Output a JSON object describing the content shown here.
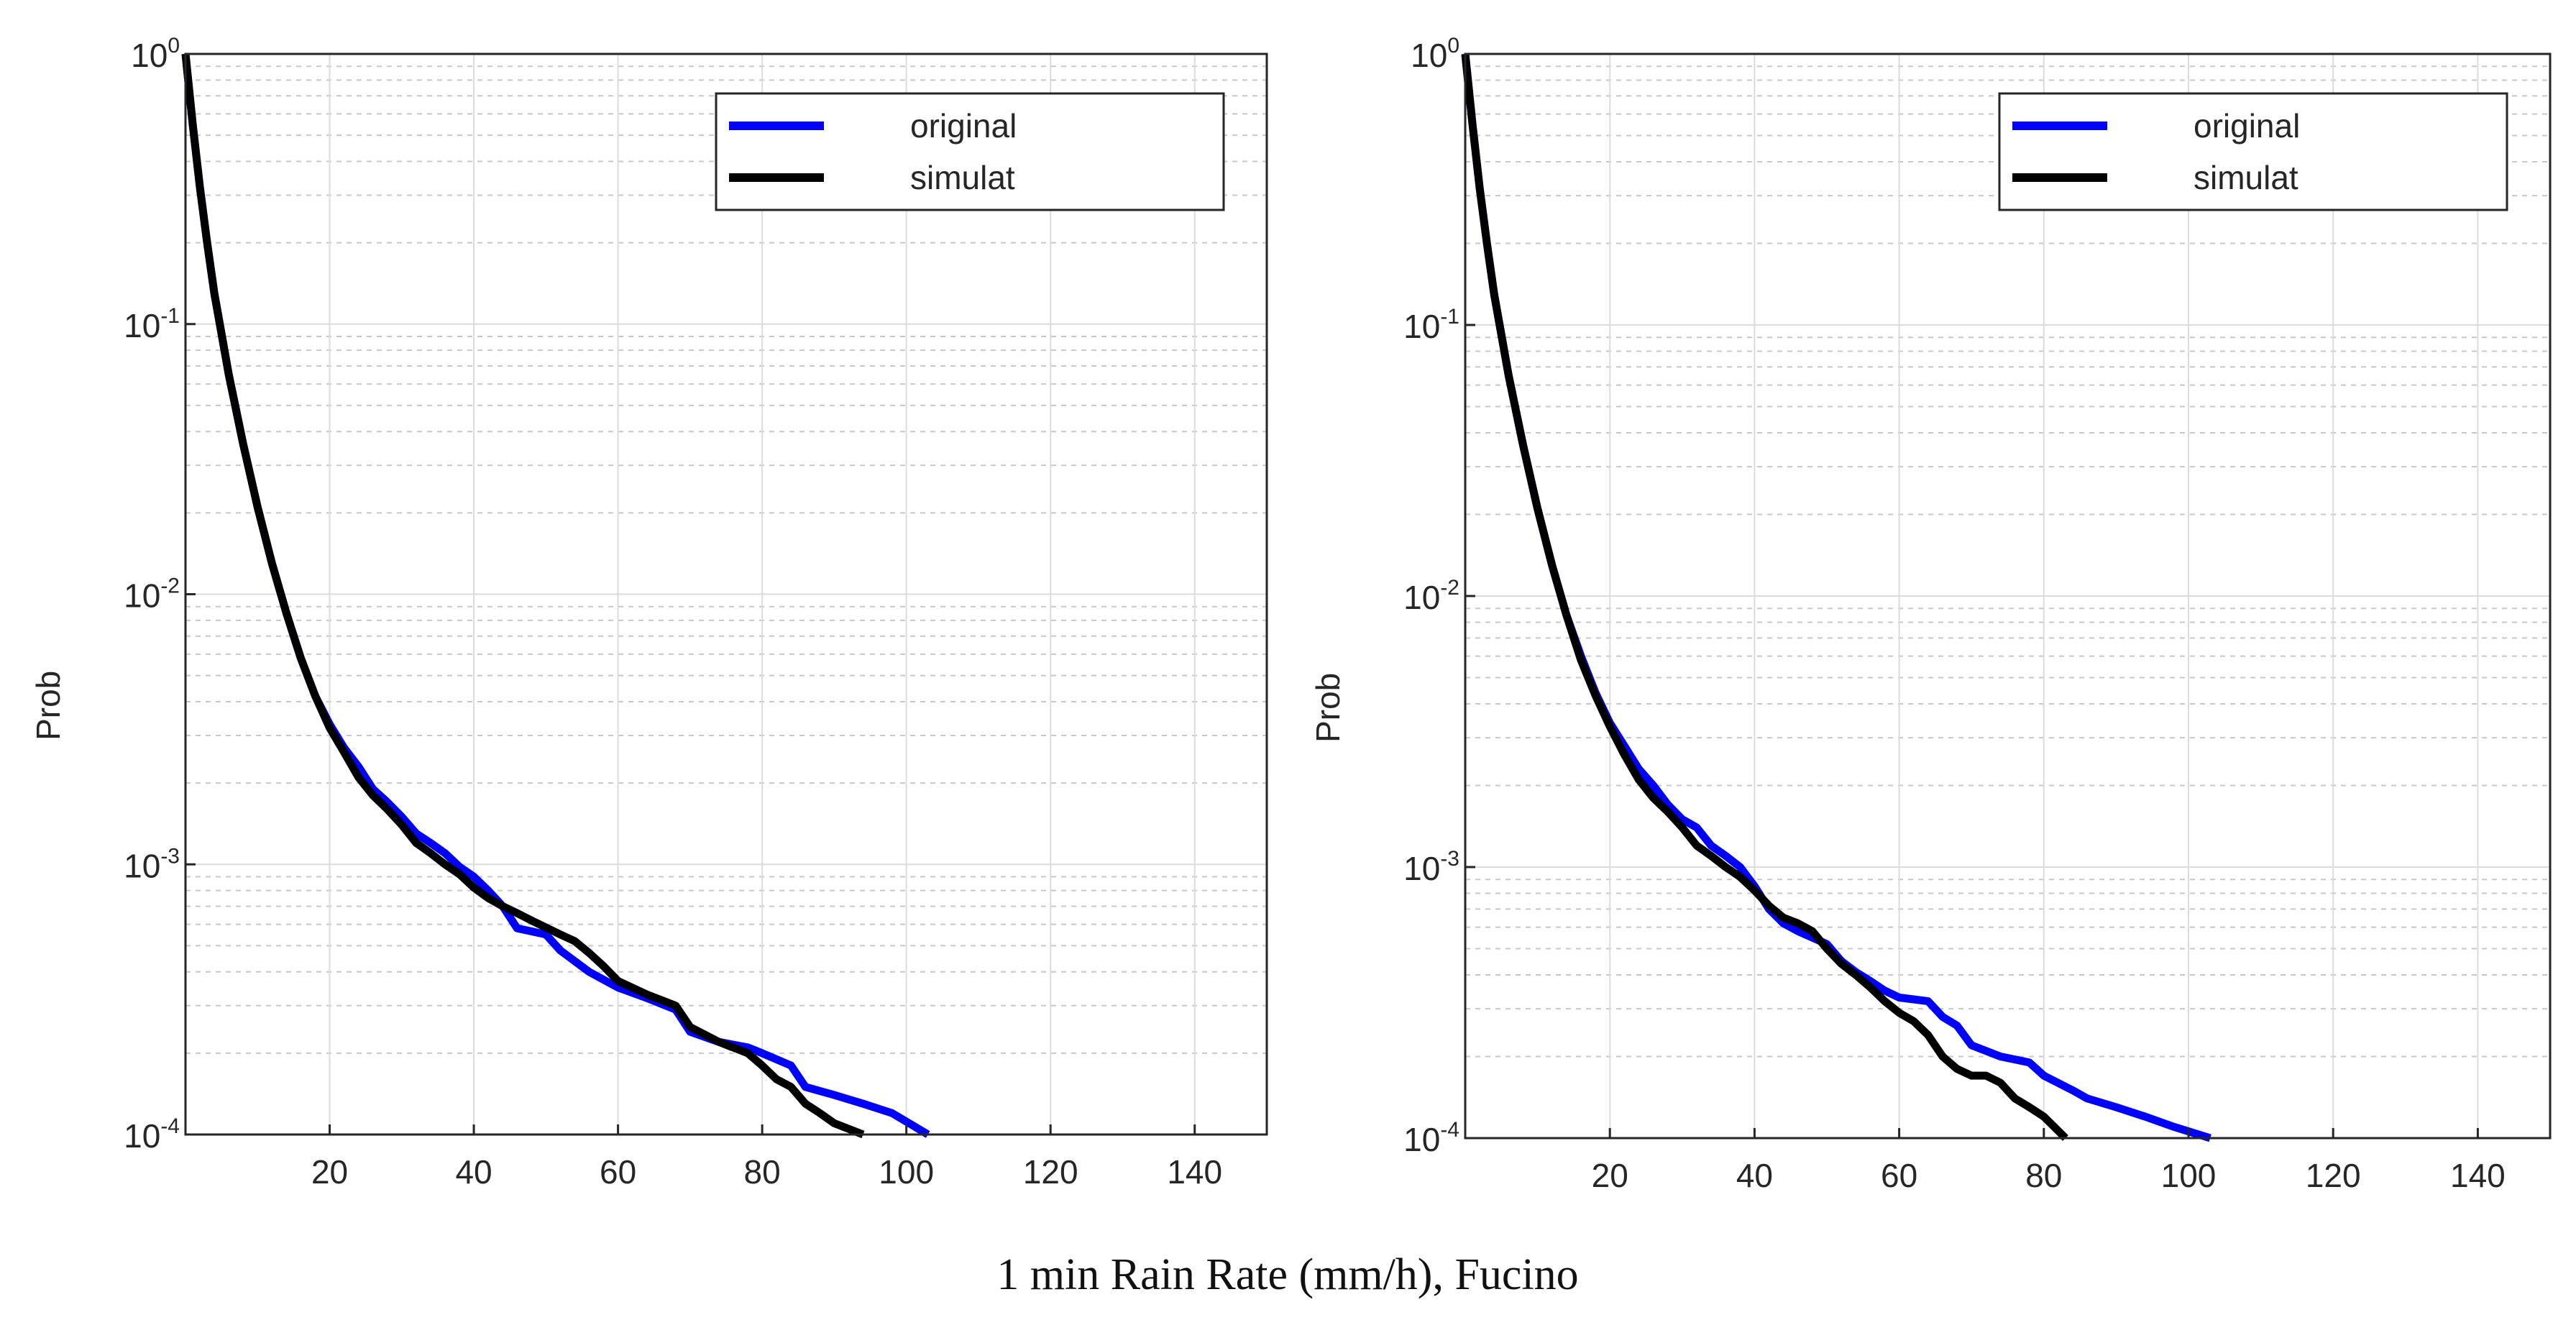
{
  "caption": "1 min Rain Rate (mm/h), Fucino",
  "chart_data": [
    {
      "type": "line",
      "ylabel": "Prob",
      "xlabel": "",
      "xlim": [
        0,
        150
      ],
      "ylim": [
        0.0001,
        1
      ],
      "yscale": "log",
      "grid": true,
      "legend_position": "top-right",
      "xticks": [
        "20",
        "40",
        "60",
        "80",
        "100",
        "120",
        "140"
      ],
      "yticks": [
        {
          "base": "10",
          "exp": "0"
        },
        {
          "base": "10",
          "exp": "-1"
        },
        {
          "base": "10",
          "exp": "-2"
        },
        {
          "base": "10",
          "exp": "-3"
        },
        {
          "base": "10",
          "exp": "-4"
        }
      ],
      "series": [
        {
          "name": "original",
          "color": "#0000ff",
          "x": [
            0,
            1,
            2,
            3,
            4,
            6,
            8,
            10,
            12,
            14,
            16,
            18,
            20,
            22,
            24,
            26,
            28,
            30,
            32,
            34,
            36,
            38,
            40,
            42,
            44,
            46,
            50,
            52,
            56,
            60,
            64,
            68,
            70,
            74,
            78,
            80,
            84,
            86,
            90,
            94,
            98,
            103
          ],
          "y": [
            1,
            0.55,
            0.32,
            0.2,
            0.13,
            0.065,
            0.036,
            0.021,
            0.013,
            0.0085,
            0.0058,
            0.0042,
            0.0033,
            0.0027,
            0.0023,
            0.0019,
            0.0017,
            0.0015,
            0.0013,
            0.0012,
            0.0011,
            0.00098,
            0.0009,
            0.0008,
            0.0007,
            0.00058,
            0.00055,
            0.00048,
            0.0004,
            0.00035,
            0.00032,
            0.00029,
            0.00024,
            0.00022,
            0.00021,
            0.0002,
            0.00018,
            0.00015,
            0.00014,
            0.00013,
            0.00012,
            0.0001
          ]
        },
        {
          "name": "simulat",
          "color": "#000000",
          "x": [
            0,
            1,
            2,
            3,
            4,
            6,
            8,
            10,
            12,
            14,
            16,
            18,
            20,
            22,
            24,
            26,
            28,
            30,
            32,
            34,
            36,
            38,
            40,
            42,
            44,
            46,
            48,
            52,
            54,
            56,
            58,
            60,
            64,
            68,
            70,
            74,
            78,
            80,
            82,
            84,
            86,
            88,
            90,
            94
          ],
          "y": [
            1,
            0.55,
            0.32,
            0.2,
            0.13,
            0.065,
            0.036,
            0.021,
            0.013,
            0.0085,
            0.0058,
            0.0042,
            0.0032,
            0.0026,
            0.0021,
            0.0018,
            0.0016,
            0.0014,
            0.0012,
            0.0011,
            0.001,
            0.00092,
            0.00082,
            0.00075,
            0.0007,
            0.00066,
            0.00062,
            0.00055,
            0.00052,
            0.00047,
            0.00042,
            0.00037,
            0.00033,
            0.0003,
            0.00025,
            0.00022,
            0.0002,
            0.00018,
            0.00016,
            0.00015,
            0.00013,
            0.00012,
            0.00011,
            0.0001
          ]
        }
      ]
    },
    {
      "type": "line",
      "ylabel": "Prob",
      "xlabel": "",
      "xlim": [
        0,
        150
      ],
      "ylim": [
        0.0001,
        1
      ],
      "yscale": "log",
      "grid": true,
      "legend_position": "top-right",
      "xticks": [
        "20",
        "40",
        "60",
        "80",
        "100",
        "120",
        "140"
      ],
      "yticks": [
        {
          "base": "10",
          "exp": "0"
        },
        {
          "base": "10",
          "exp": "-1"
        },
        {
          "base": "10",
          "exp": "-2"
        },
        {
          "base": "10",
          "exp": "-3"
        },
        {
          "base": "10",
          "exp": "-4"
        }
      ],
      "series": [
        {
          "name": "original",
          "color": "#0000ff",
          "x": [
            0,
            1,
            2,
            3,
            4,
            6,
            8,
            10,
            12,
            14,
            16,
            18,
            20,
            22,
            24,
            26,
            28,
            30,
            32,
            34,
            36,
            38,
            40,
            42,
            44,
            46,
            50,
            52,
            54,
            56,
            58,
            60,
            64,
            66,
            68,
            70,
            74,
            78,
            80,
            84,
            86,
            90,
            94,
            98,
            103
          ],
          "y": [
            1,
            0.55,
            0.32,
            0.2,
            0.13,
            0.065,
            0.036,
            0.021,
            0.013,
            0.0085,
            0.006,
            0.0044,
            0.0034,
            0.0028,
            0.0023,
            0.002,
            0.0017,
            0.0015,
            0.0014,
            0.0012,
            0.0011,
            0.001,
            0.00085,
            0.0007,
            0.00062,
            0.00058,
            0.00052,
            0.00045,
            0.00041,
            0.00038,
            0.00035,
            0.00033,
            0.00032,
            0.00028,
            0.00026,
            0.00022,
            0.0002,
            0.00019,
            0.00017,
            0.00015,
            0.00014,
            0.00013,
            0.00012,
            0.00011,
            0.0001
          ]
        },
        {
          "name": "simulat",
          "color": "#000000",
          "x": [
            0,
            1,
            2,
            3,
            4,
            6,
            8,
            10,
            12,
            14,
            16,
            18,
            20,
            22,
            24,
            26,
            28,
            30,
            32,
            34,
            36,
            38,
            40,
            42,
            44,
            46,
            48,
            50,
            52,
            54,
            56,
            58,
            60,
            62,
            64,
            66,
            68,
            70,
            72,
            74,
            76,
            78,
            80,
            83
          ],
          "y": [
            1,
            0.55,
            0.32,
            0.2,
            0.13,
            0.065,
            0.036,
            0.021,
            0.013,
            0.0085,
            0.0058,
            0.0043,
            0.0033,
            0.0026,
            0.0021,
            0.0018,
            0.0016,
            0.0014,
            0.0012,
            0.0011,
            0.001,
            0.00092,
            0.00082,
            0.00072,
            0.00065,
            0.00062,
            0.00058,
            0.0005,
            0.00044,
            0.0004,
            0.00036,
            0.00032,
            0.00029,
            0.00027,
            0.00024,
            0.0002,
            0.00018,
            0.00017,
            0.00017,
            0.00016,
            0.00014,
            0.00013,
            0.00012,
            0.0001
          ]
        }
      ]
    }
  ]
}
